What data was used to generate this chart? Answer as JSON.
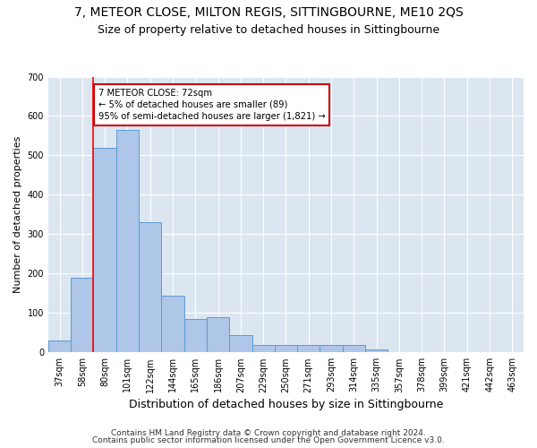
{
  "title1": "7, METEOR CLOSE, MILTON REGIS, SITTINGBOURNE, ME10 2QS",
  "title2": "Size of property relative to detached houses in Sittingbourne",
  "xlabel": "Distribution of detached houses by size in Sittingbourne",
  "ylabel": "Number of detached properties",
  "footnote1": "Contains HM Land Registry data © Crown copyright and database right 2024.",
  "footnote2": "Contains public sector information licensed under the Open Government Licence v3.0.",
  "categories": [
    "37sqm",
    "58sqm",
    "80sqm",
    "101sqm",
    "122sqm",
    "144sqm",
    "165sqm",
    "186sqm",
    "207sqm",
    "229sqm",
    "250sqm",
    "271sqm",
    "293sqm",
    "314sqm",
    "335sqm",
    "357sqm",
    "378sqm",
    "399sqm",
    "421sqm",
    "442sqm",
    "463sqm"
  ],
  "values": [
    30,
    190,
    520,
    565,
    330,
    145,
    85,
    90,
    45,
    20,
    20,
    20,
    20,
    20,
    8,
    0,
    0,
    0,
    0,
    0,
    0
  ],
  "bar_color": "#aec6e8",
  "bar_edge_color": "#5b9bd5",
  "annotation_line1": "7 METEOR CLOSE: 72sqm",
  "annotation_line2": "← 5% of detached houses are smaller (89)",
  "annotation_line3": "95% of semi-detached houses are larger (1,821) →",
  "annotation_box_color": "#ffffff",
  "annotation_box_edge": "#cc0000",
  "ylim": [
    0,
    700
  ],
  "background_color": "#ffffff",
  "plot_background": "#dce6f1",
  "grid_color": "#ffffff",
  "title1_fontsize": 10,
  "title2_fontsize": 9,
  "xlabel_fontsize": 9,
  "ylabel_fontsize": 8,
  "tick_fontsize": 7,
  "footnote_fontsize": 6.5
}
